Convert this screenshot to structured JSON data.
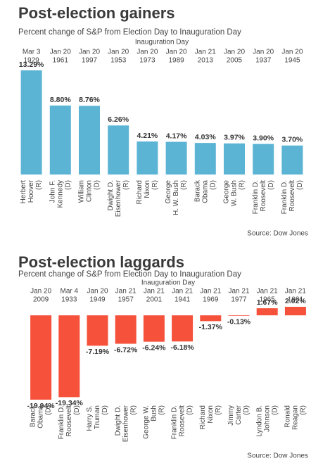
{
  "chart_data": [
    {
      "type": "bar",
      "title": "Post-election gainers",
      "subtitle": "Percent change of S&P from Election Day to Inauguration Day",
      "header": "Inauguration Day",
      "dates": [
        [
          "Mar 3",
          "1929"
        ],
        [
          "Jan 20",
          "1961"
        ],
        [
          "Jan 20",
          "1997"
        ],
        [
          "Jan 20",
          "1953"
        ],
        [
          "Jan 20",
          "1973"
        ],
        [
          "Jan 20",
          "1989"
        ],
        [
          "Jan 21",
          "2013"
        ],
        [
          "Jan 20",
          "2005"
        ],
        [
          "Jan 20",
          "1937"
        ],
        [
          "Jan 20",
          "1945"
        ]
      ],
      "categories": [
        [
          "Herbert",
          "Hoover",
          "(R)"
        ],
        [
          "John F.",
          "Kennedy",
          "(D)"
        ],
        [
          "William",
          "Clinton",
          "(D)"
        ],
        [
          "Dwight D.",
          "Eisenhower",
          "(R)"
        ],
        [
          "Richard",
          "Nixon",
          "(R)"
        ],
        [
          "George",
          "H. W. Bush",
          "(R)"
        ],
        [
          "Barack",
          "Obama",
          "(D)"
        ],
        [
          "George",
          "W. Bush",
          "(R)"
        ],
        [
          "Franklin D.",
          "Roosevelt",
          "(D)"
        ],
        [
          "Franklin D.",
          "Roosevelt",
          "(D)"
        ]
      ],
      "values": [
        13.29,
        8.8,
        8.76,
        6.26,
        4.21,
        4.17,
        4.03,
        3.97,
        3.9,
        3.7
      ],
      "value_labels": [
        "13.29%",
        "8.80%",
        "8.76%",
        "6.26%",
        "4.21%",
        "4.17%",
        "4.03%",
        "3.97%",
        "3.90%",
        "3.70%"
      ],
      "color": "#5cb4d5",
      "source": "Source: Dow Jones"
    },
    {
      "type": "bar",
      "title": "Post-election laggards",
      "subtitle": "Percent change of S&P from Election Day to Inauguration Day",
      "header": "Inauguration Day",
      "dates": [
        [
          "Jan 20",
          "2009"
        ],
        [
          "Mar 4",
          "1933"
        ],
        [
          "Jan 20",
          "1949"
        ],
        [
          "Jan 21",
          "1957"
        ],
        [
          "Jan 21",
          "2001"
        ],
        [
          "Jan 21",
          "1941"
        ],
        [
          "Jan 21",
          "1969"
        ],
        [
          "Jan 21",
          "1977"
        ],
        [
          "Jan 21",
          "1965"
        ],
        [
          "Jan 21",
          "1981"
        ]
      ],
      "categories": [
        [
          "Barack",
          "Obama",
          "(D)"
        ],
        [
          "Franklin D.",
          "Roosevelt",
          "(D)"
        ],
        [
          "Harry S.",
          "Truman",
          "(D)"
        ],
        [
          "Dwight D.",
          "Eisenhower",
          "(R)"
        ],
        [
          "George W.",
          "Bush",
          "(R)"
        ],
        [
          "Franklin D.",
          "Roosevelt",
          "(D)"
        ],
        [
          "Richard",
          "Nixon",
          "(R)"
        ],
        [
          "Jimmy",
          "Carter",
          "(D)"
        ],
        [
          "Lyndon B.",
          "Johnson",
          "(D)"
        ],
        [
          "Ronald",
          "Reagan",
          "(R)"
        ]
      ],
      "values": [
        -19.94,
        -19.34,
        -7.19,
        -6.72,
        -6.24,
        -6.18,
        -1.37,
        -0.13,
        1.67,
        2.02
      ],
      "value_labels": [
        "-19.94%",
        "-19.34%",
        "-7.19%",
        "-6.72%",
        "-6.24%",
        "-6.18%",
        "-1.37%",
        "-0.13%",
        "1.67%",
        "2.02%"
      ],
      "color": "#f5513b",
      "source": "Source: Dow Jones"
    }
  ]
}
